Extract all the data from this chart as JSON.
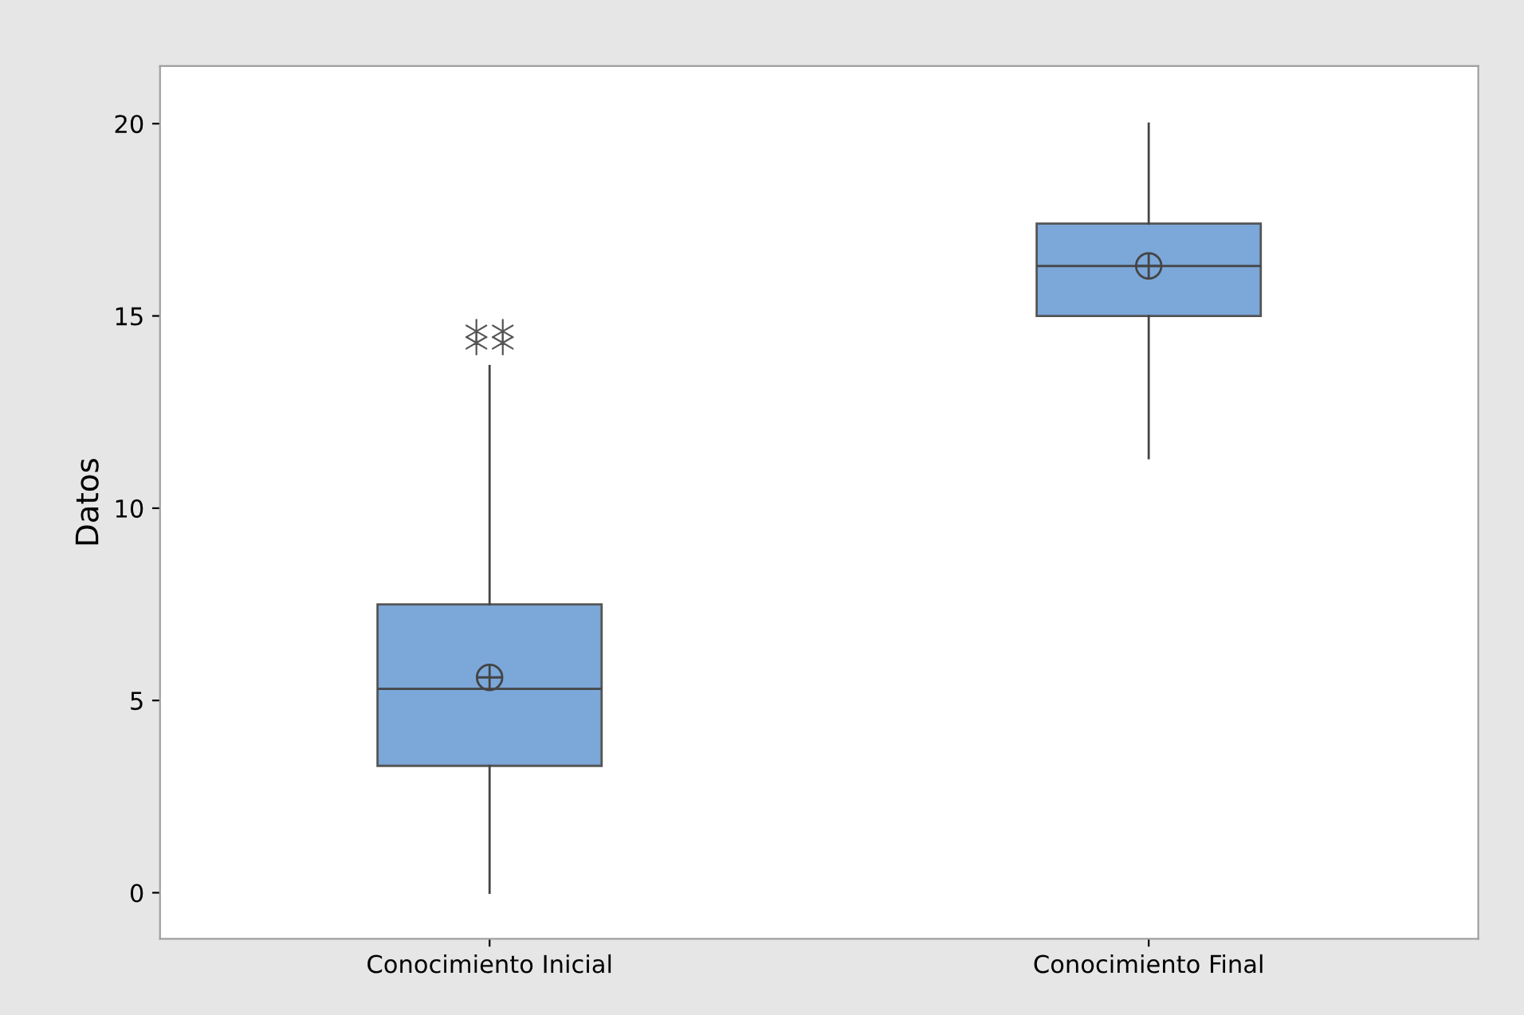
{
  "chart_data": {
    "type": "box",
    "ylabel": "Datos",
    "categories": [
      "Conocimiento Inicial",
      "Conocimiento Final"
    ],
    "color": "#7ba7d9",
    "boxes": [
      {
        "low": 0,
        "q1": 3.3,
        "median": 5.3,
        "q3": 7.5,
        "high": 13.7,
        "mean": 5.6,
        "outliers": [
          14.3,
          14.3,
          14.6,
          14.6
        ]
      },
      {
        "low": 11.3,
        "q1": 15,
        "median": 16.3,
        "q3": 17.4,
        "high": 20,
        "mean": 16.3
      }
    ],
    "ylim": [
      -1.2,
      21.5
    ],
    "yticks": [
      0,
      5,
      10,
      15,
      20
    ],
    "grid": false,
    "legend": false
  }
}
